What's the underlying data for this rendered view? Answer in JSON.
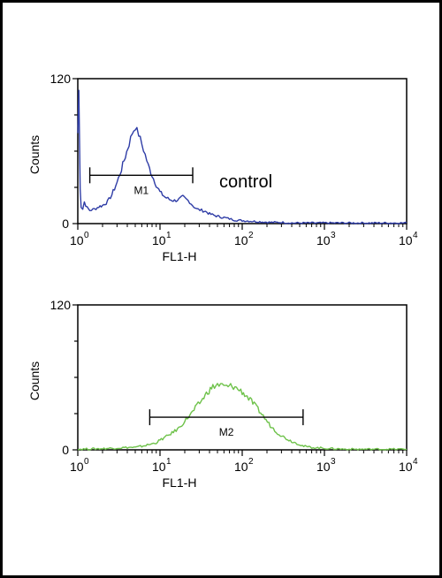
{
  "chart_data": [
    {
      "type": "line",
      "title": "",
      "xlabel": "FL1-H",
      "ylabel": "Counts",
      "x_scale": "log",
      "xlim": [
        1,
        10000
      ],
      "ylim": [
        0,
        120
      ],
      "y_ticks": [
        "0",
        "120"
      ],
      "x_ticks": [
        {
          "base": "10",
          "exp": "0"
        },
        {
          "base": "10",
          "exp": "1"
        },
        {
          "base": "10",
          "exp": "2"
        },
        {
          "base": "10",
          "exp": "3"
        },
        {
          "base": "10",
          "exp": "4"
        }
      ],
      "annotation": "control",
      "series": [
        {
          "color": "#2e3ca6",
          "x": [
            1.0,
            1.03,
            1.07,
            1.1,
            1.15,
            1.2,
            1.3,
            1.4,
            1.6,
            1.8,
            2.0,
            2.3,
            2.6,
            3.0,
            3.4,
            3.8,
            4.2,
            4.6,
            5.0,
            5.5,
            6.0,
            6.6,
            7.2,
            8.0,
            9.0,
            10.0,
            11.5,
            13,
            15,
            17,
            19,
            21,
            23,
            25,
            28,
            32,
            36,
            40,
            45,
            50,
            60,
            70,
            80,
            100,
            130,
            170,
            220,
            300,
            400,
            600,
            1000,
            2000,
            5000,
            10000
          ],
          "y": [
            75,
            110,
            30,
            14,
            12,
            18,
            13,
            11,
            12,
            14,
            15,
            18,
            24,
            34,
            45,
            56,
            66,
            75,
            80,
            74,
            66,
            57,
            48,
            40,
            32,
            26,
            22,
            20,
            19,
            20,
            22,
            20,
            18,
            15,
            12,
            11,
            10,
            8,
            7,
            6,
            5,
            4,
            3,
            2.5,
            2,
            1.5,
            1,
            1,
            0.5,
            0.5,
            0.5,
            0.5,
            0.5,
            0.5
          ]
        }
      ],
      "gate": {
        "label": "M1",
        "x_start": 1.4,
        "x_end": 25,
        "y": 40
      }
    },
    {
      "type": "line",
      "title": "",
      "xlabel": "FL1-H",
      "ylabel": "Counts",
      "x_scale": "log",
      "xlim": [
        1,
        10000
      ],
      "ylim": [
        0,
        120
      ],
      "y_ticks": [
        "0",
        "120"
      ],
      "x_ticks": [
        {
          "base": "10",
          "exp": "0"
        },
        {
          "base": "10",
          "exp": "1"
        },
        {
          "base": "10",
          "exp": "2"
        },
        {
          "base": "10",
          "exp": "3"
        },
        {
          "base": "10",
          "exp": "4"
        }
      ],
      "series": [
        {
          "color": "#6ec24a",
          "x": [
            1.0,
            2.0,
            3.0,
            4.0,
            5.0,
            6.0,
            7.0,
            8.0,
            9.0,
            10,
            12,
            14,
            17,
            20,
            24,
            28,
            33,
            38,
            44,
            50,
            57,
            65,
            75,
            85,
            100,
            115,
            130,
            150,
            180,
            220,
            270,
            330,
            400,
            480,
            560,
            700,
            900,
            1200,
            2000,
            4000,
            10000
          ],
          "y": [
            0.5,
            1,
            1.5,
            2,
            2,
            3,
            4,
            5,
            6,
            8,
            11,
            14,
            18,
            24,
            30,
            36,
            42,
            48,
            52,
            54,
            53,
            52,
            53,
            51,
            48,
            44,
            40,
            35,
            28,
            20,
            14,
            10,
            7,
            5,
            3,
            2,
            1.5,
            1,
            0.5,
            0.5,
            0.5
          ]
        }
      ],
      "gate": {
        "label": "M2",
        "x_start": 7.5,
        "x_end": 550,
        "y": 27
      }
    }
  ]
}
